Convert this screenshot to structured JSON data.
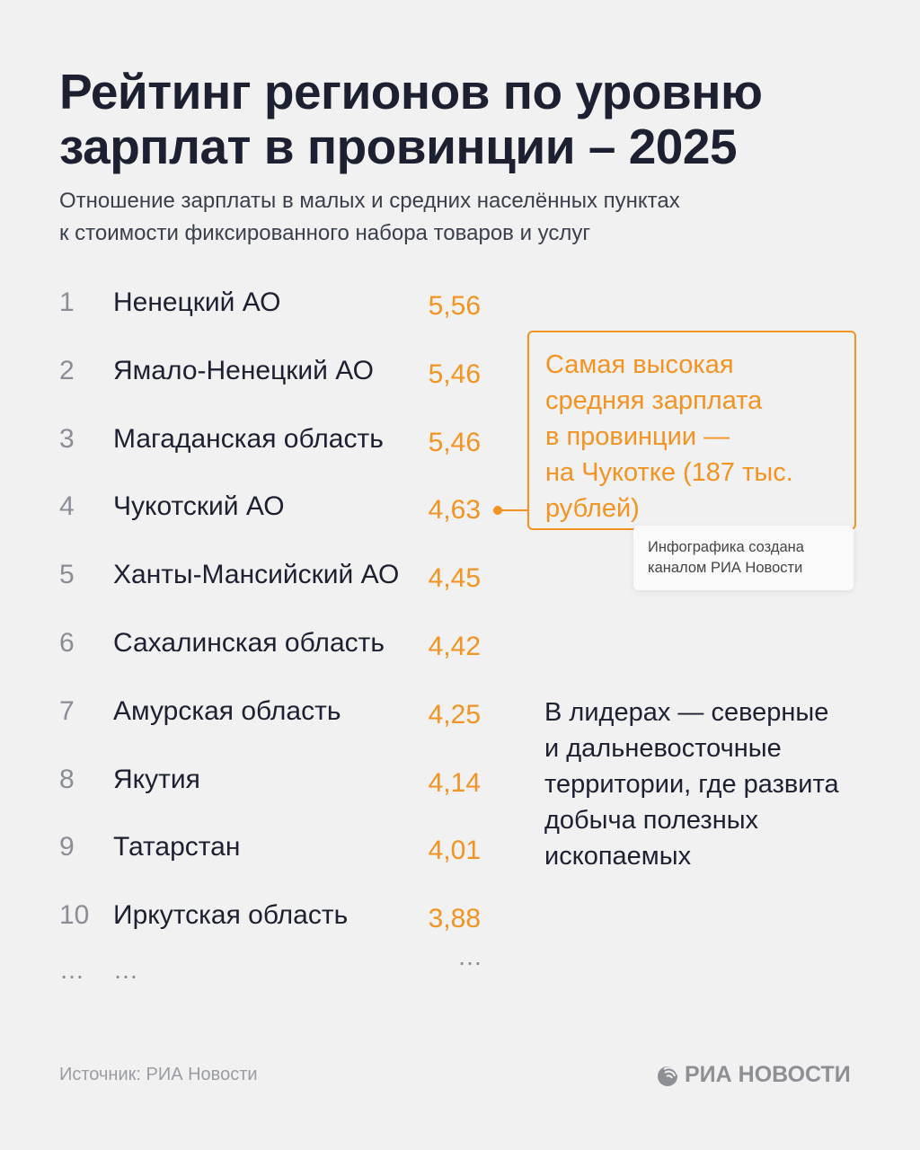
{
  "title": "Рейтинг регионов по уровню зарплат в провинции – 2025",
  "subtitle_lines": [
    "Отношение зарплаты в малых и средних населённых пунктах",
    "к стоимости фиксированного набора товаров и услуг"
  ],
  "chart_data": {
    "type": "table",
    "columns": [
      "rank",
      "region",
      "value"
    ],
    "rows": [
      {
        "rank": "1",
        "region": "Ненецкий АО",
        "value": "5,56"
      },
      {
        "rank": "2",
        "region": "Ямало-Ненецкий АО",
        "value": "5,46"
      },
      {
        "rank": "3",
        "region": "Магаданская область",
        "value": "5,46"
      },
      {
        "rank": "4",
        "region": "Чукотский АО",
        "value": "4,63"
      },
      {
        "rank": "5",
        "region": "Ханты-Мансийский АО",
        "value": "4,45"
      },
      {
        "rank": "6",
        "region": "Сахалинская область",
        "value": "4,42"
      },
      {
        "rank": "7",
        "region": "Амурская область",
        "value": "4,25"
      },
      {
        "rank": "8",
        "region": "Якутия",
        "value": "4,14"
      },
      {
        "rank": "9",
        "region": "Татарстан",
        "value": "4,01"
      },
      {
        "rank": "10",
        "region": "Иркутская область",
        "value": "3,88"
      }
    ],
    "ellipsis": "…",
    "accent_color": "#f39322"
  },
  "callout": {
    "lines": [
      "Самая высокая",
      "средняя зарплата",
      "в провинции —",
      "на Чукотке (187 тыс.",
      "рублей)"
    ]
  },
  "tooltip": {
    "lines": [
      "Инфографика создана",
      "каналом РИА Новости"
    ]
  },
  "note": {
    "lines": [
      "В лидерах — северные",
      "и дальневосточные",
      "территории, где развита",
      "добыча полезных",
      "ископаемых"
    ]
  },
  "footer": {
    "source": "Источник: РИА Новости",
    "logo": "РИА НОВОСТИ"
  }
}
